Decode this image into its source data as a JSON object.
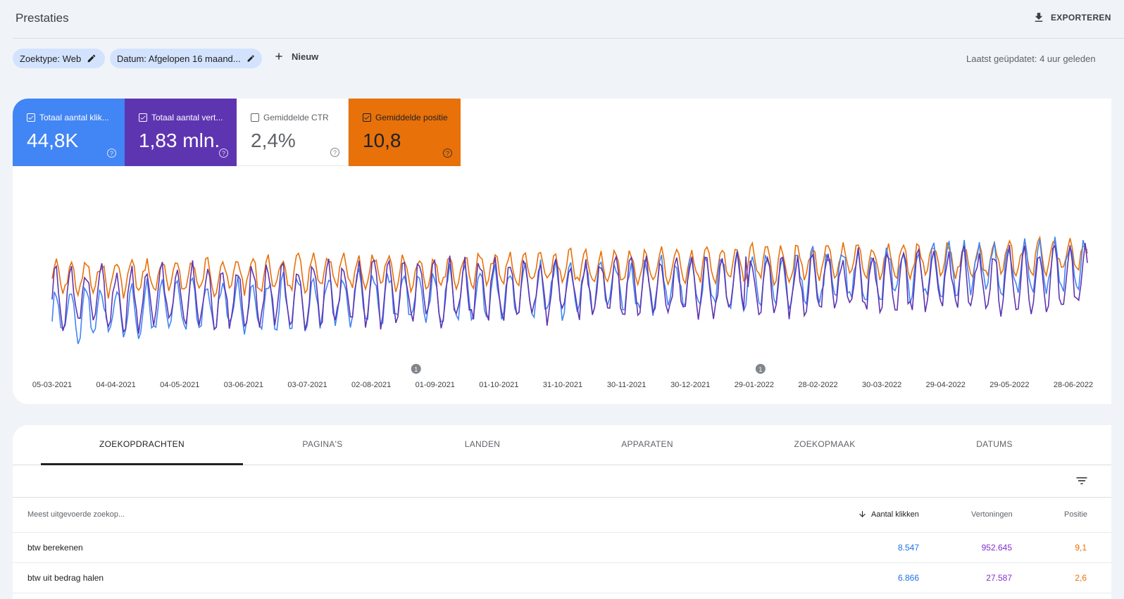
{
  "header": {
    "title": "Prestaties",
    "export_label": "EXPORTEREN"
  },
  "filters": {
    "search_type": "Zoektype: Web",
    "date": "Datum: Afgelopen 16 maand...",
    "new_label": "Nieuw",
    "last_updated": "Laatst geüpdatet: 4 uur geleden"
  },
  "metrics": [
    {
      "label": "Totaal aantal klik...",
      "value": "44,8K",
      "checked": true,
      "color": "#4285f4"
    },
    {
      "label": "Totaal aantal vert...",
      "value": "1,83 mln.",
      "checked": true,
      "color": "#5e35b1"
    },
    {
      "label": "Gemiddelde CTR",
      "value": "2,4%",
      "checked": false,
      "color": "#ffffff"
    },
    {
      "label": "Gemiddelde positie",
      "value": "10,8",
      "checked": true,
      "color": "#e8710a"
    }
  ],
  "chart_data": {
    "type": "line",
    "x_tick_labels": [
      "05-03-2021",
      "04-04-2021",
      "04-05-2021",
      "03-06-2021",
      "03-07-2021",
      "02-08-2021",
      "01-09-2021",
      "01-10-2021",
      "31-10-2021",
      "30-11-2021",
      "30-12-2021",
      "29-01-2022",
      "28-02-2022",
      "30-03-2022",
      "29-04-2022",
      "29-05-2022",
      "28-06-2022"
    ],
    "annotations": [
      {
        "label": "1",
        "date": "01-09-2021"
      },
      {
        "label": "1",
        "date": "29-01-2022"
      }
    ],
    "series": [
      {
        "name": "Totaal aantal klikken",
        "color": "#4285f4"
      },
      {
        "name": "Totaal aantal vertoningen",
        "color": "#5e35b1"
      },
      {
        "name": "Gemiddelde positie",
        "color": "#e8710a"
      }
    ]
  },
  "table": {
    "tabs": [
      "ZOEKOPDRACHTEN",
      "PAGINA'S",
      "LANDEN",
      "APPARATEN",
      "ZOEKOPMAAK",
      "DATUMS"
    ],
    "active_tab": 0,
    "columns": {
      "query": "Meest uitgevoerde zoekop...",
      "clicks": "Aantal klikken",
      "impressions": "Vertoningen",
      "position": "Positie"
    },
    "rows": [
      {
        "query": "btw berekenen",
        "clicks": "8.547",
        "impressions": "952.645",
        "position": "9,1"
      },
      {
        "query": "btw uit bedrag halen",
        "clicks": "6.866",
        "impressions": "27.587",
        "position": "2,6"
      }
    ]
  }
}
